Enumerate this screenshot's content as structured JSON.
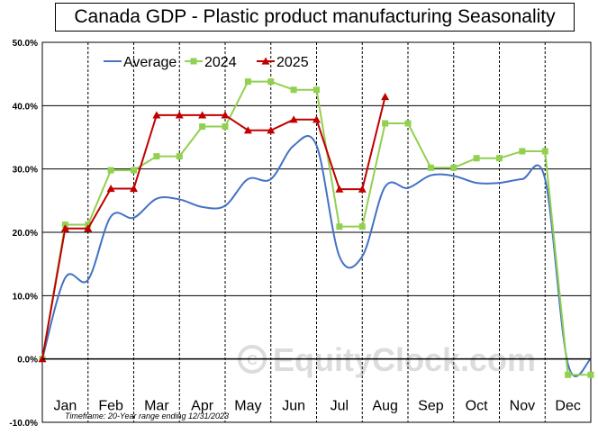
{
  "chart_data": {
    "type": "line",
    "title": "Canada GDP - Plastic product manufacturing Seasonality",
    "categories": [
      "Jan",
      "Feb",
      "Mar",
      "Apr",
      "May",
      "Jun",
      "Jul",
      "Aug",
      "Sep",
      "Oct",
      "Nov",
      "Dec"
    ],
    "y_ticks": [
      "50.0%",
      "40.0%",
      "30.0%",
      "20.0%",
      "10.0%",
      "0.0%",
      "-10.0%"
    ],
    "ylim": [
      -10,
      50
    ],
    "grid": "horizontal lines every 10%, dashed vertical month separators",
    "legend_position": "top-left",
    "footnote": "Timeframe: 20-Year range ending 12/31/2023",
    "watermark": "EquityClock.com",
    "series": [
      {
        "name": "Average",
        "color": "#4472c4",
        "x": [
          0,
          0.5,
          1.0,
          1.5,
          2.0,
          2.5,
          3.0,
          3.5,
          4.0,
          4.5,
          5.0,
          5.5,
          6.0,
          6.5,
          7.0,
          7.5,
          8.0,
          8.5,
          9.0,
          9.5,
          10.0,
          10.5,
          11.0,
          11.5,
          12.0
        ],
        "values": [
          0,
          12.8,
          12.5,
          22.5,
          22.3,
          25.3,
          25.2,
          24.0,
          24.2,
          28.4,
          28.4,
          33.7,
          33.7,
          16.2,
          16.2,
          27.2,
          27.0,
          29.0,
          28.9,
          27.8,
          27.8,
          28.4,
          28.4,
          -0.8,
          0
        ]
      },
      {
        "name": "2024",
        "color": "#92d050",
        "x": [
          0,
          0.5,
          1.0,
          1.5,
          2.0,
          2.5,
          3.0,
          3.5,
          4.0,
          4.5,
          5.0,
          5.5,
          6.0,
          6.5,
          7.0,
          7.5,
          8.0,
          8.5,
          9.0,
          9.5,
          10.0,
          10.5,
          11.0,
          11.5,
          12.0
        ],
        "values": [
          0,
          21.2,
          21.2,
          29.8,
          29.8,
          32.0,
          32.0,
          36.7,
          36.7,
          43.8,
          43.8,
          42.5,
          42.5,
          20.9,
          20.9,
          37.2,
          37.2,
          30.2,
          30.2,
          31.7,
          31.7,
          32.8,
          32.8,
          -2.5,
          -2.5
        ]
      },
      {
        "name": "2025",
        "color": "#c00000",
        "x": [
          0,
          0.5,
          1.0,
          1.5,
          2.0,
          2.5,
          3.0,
          3.5,
          4.0,
          4.5,
          5.0,
          5.5,
          6.0,
          6.5,
          7.0,
          7.5
        ],
        "values": [
          0,
          20.6,
          20.6,
          26.9,
          26.9,
          38.5,
          38.5,
          38.5,
          38.5,
          36.1,
          36.1,
          37.8,
          37.8,
          26.8,
          26.8,
          41.4
        ]
      }
    ]
  }
}
